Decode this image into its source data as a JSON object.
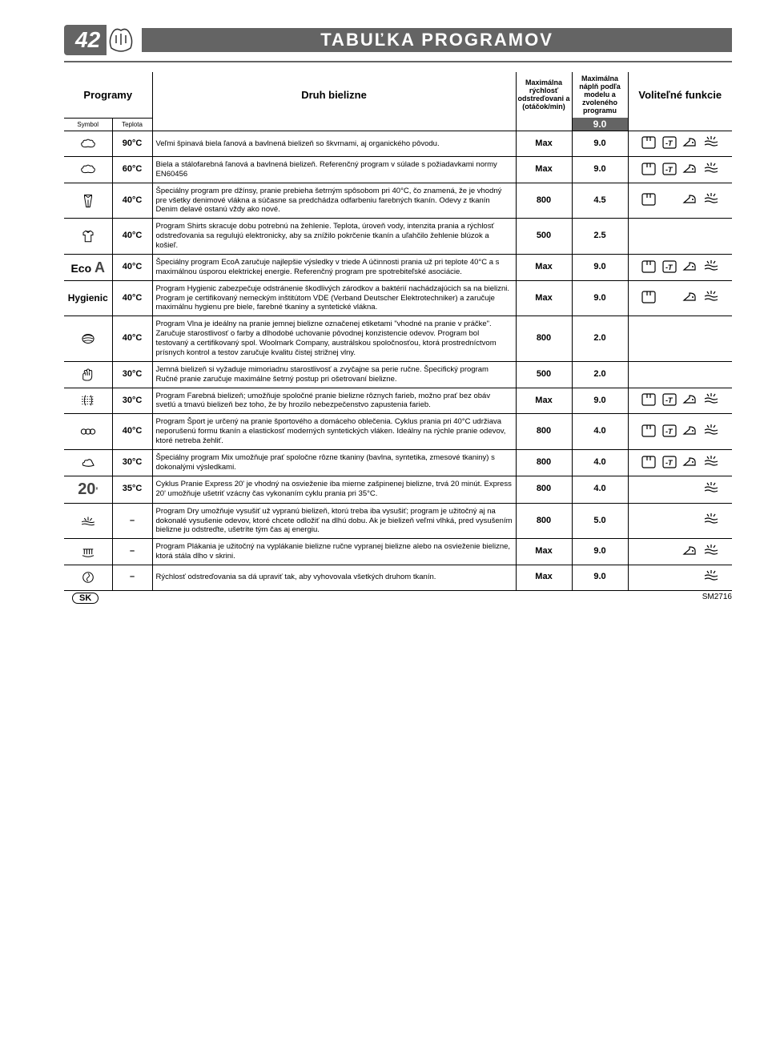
{
  "page_number": "42",
  "title": "TABUĽKA PROGRAMOV",
  "headers": {
    "programs": "Programy",
    "symbol": "Symbol",
    "temp": "Teplota",
    "fabric": "Druh bielizne",
    "spin": "Maximálna rýchlosť odstreďovani a (otáčok/min)",
    "capacity": "Maximálna náplň podľa modelu a zvoleného programu",
    "functions": "Voliteľné funkcie",
    "maxcap": "9.0"
  },
  "colors": {
    "header_bg": "#646464",
    "header_fg": "#ffffff",
    "line": "#000000",
    "text": "#000000"
  },
  "func_icons": {
    "prewash": "prewash",
    "stain": "stain",
    "easyiron": "easyiron",
    "dry": "dry"
  },
  "rows": [
    {
      "sym": "cotton",
      "temp": "90°C",
      "desc": "Veľmi špinavá biela ľanová a bavlnená bielizeň so škvrnami, aj organického pôvodu.",
      "spin": "Max",
      "cap": "9.0",
      "funcs": [
        "prewash",
        "stain",
        "easyiron",
        "dry"
      ]
    },
    {
      "sym": "cotton",
      "temp": "60°C",
      "desc": "Biela a stálofarebná ľanová a bavlnená bielizeň. Referenčný program v súlade s požiadavkami normy EN60456",
      "spin": "Max",
      "cap": "9.0",
      "funcs": [
        "prewash",
        "stain",
        "easyiron",
        "dry"
      ]
    },
    {
      "sym": "jeans",
      "temp": "40°C",
      "desc": "Špeciálny program pre džínsy, pranie prebieha šetrným spôsobom pri 40°C, čo znamená, že je vhodný pre všetky denimové vlákna a súčasne sa predchádza odfarbeniu farebných tkanín. Odevy z tkanín Denim delavé ostanú vždy ako nové.",
      "spin": "800",
      "cap": "4.5",
      "funcs": [
        "prewash",
        "",
        "easyiron",
        "dry"
      ]
    },
    {
      "sym": "shirts",
      "temp": "40°C",
      "desc": "Program Shirts skracuje dobu potrebnú na žehlenie. Teplota, úroveň vody, intenzita prania a rýchlosť odstreďovania sa regulujú elektronicky, aby sa znížilo pokrčenie tkanín a uľahčilo žehlenie blúzok a košieľ.",
      "spin": "500",
      "cap": "2.5",
      "funcs": []
    },
    {
      "sym": "eco",
      "temp": "40°C",
      "desc": "Špeciálny program EcoA zaručuje najlepšie výsledky v triede A účinnosti prania už pri teplote 40°C a s maximálnou úsporou elektrickej energie. Referenčný program pre spotrebiteľské asociácie.",
      "spin": "Max",
      "cap": "9.0",
      "funcs": [
        "prewash",
        "stain",
        "easyiron",
        "dry"
      ]
    },
    {
      "sym": "hygienic",
      "temp": "40°C",
      "desc": "Program Hygienic zabezpečuje odstránenie škodlivých zárodkov a baktérií nachádzajúcich sa na bielizni. Program je certifikovaný nemeckým inštitútom VDE (Verband Deutscher Elektrotechniker) a zaručuje maximálnu hygienu pre biele, farebné tkaniny a syntetické vlákna.",
      "spin": "Max",
      "cap": "9.0",
      "funcs": [
        "prewash",
        "",
        "easyiron",
        "dry"
      ]
    },
    {
      "sym": "wool",
      "temp": "40°C",
      "desc": "Program Vlna je ideálny na pranie jemnej bielizne označenej etiketami \"vhodné na pranie v práčke\". Zaručuje starostlivosť o farby a dlhodobé uchovanie pôvodnej konzistencie odevov. Program bol testovaný a certifikovaný spol. Woolmark Company, austrálskou spoločnosťou, ktorá prostredníctvom prísnych kontrol a testov zaručuje kvalitu čistej strižnej vlny.",
      "spin": "800",
      "cap": "2.0",
      "funcs": []
    },
    {
      "sym": "hand",
      "temp": "30°C",
      "desc": "Jemná bielizeň si vyžaduje mimoriadnu starostlivosť a zvyčajne sa perie ručne. Špecifický program Ručné pranie zaručuje maximálne šetrný postup pri ošetrovaní bielizne.",
      "spin": "500",
      "cap": "2.0",
      "funcs": []
    },
    {
      "sym": "delicate",
      "temp": "30°C",
      "desc": "Program Farebná bielizeň; umožňuje spoločné pranie bielizne rôznych farieb, možno prať bez obáv svetlú a tmavú bielizeň bez toho, že by hrozilo nebezpečenstvo zapustenia farieb.",
      "spin": "Max",
      "cap": "9.0",
      "funcs": [
        "prewash",
        "stain",
        "easyiron",
        "dry"
      ]
    },
    {
      "sym": "sport",
      "temp": "40°C",
      "desc": "Program Šport je určený na pranie športového a domáceho oblečenia. Cyklus prania pri 40°C udržiava neporušenú formu tkanín a elastickosť moderných syntetických vláken. Ideálny na rýchle pranie odevov, ktoré netreba žehliť.",
      "spin": "800",
      "cap": "4.0",
      "funcs": [
        "prewash",
        "stain",
        "easyiron",
        "dry"
      ]
    },
    {
      "sym": "mix",
      "temp": "30°C",
      "desc": "Špeciálny program Mix umožňuje prať spoločne rôzne tkaniny (bavlna, syntetika, zmesové tkaniny) s dokonalými výsledkami.",
      "spin": "800",
      "cap": "4.0",
      "funcs": [
        "prewash",
        "stain",
        "easyiron",
        "dry"
      ]
    },
    {
      "sym": "twenty",
      "temp": "35°C",
      "desc": "Cyklus Pranie Express 20' je vhodný na osvieženie iba mierne zašpinenej bielizne, trvá 20 minút. Express 20' umožňuje ušetriť vzácny čas vykonaním cyklu prania pri 35°C.",
      "spin": "800",
      "cap": "4.0",
      "funcs": [
        "",
        "",
        "",
        "dry"
      ]
    },
    {
      "sym": "dry",
      "temp": "–",
      "desc": "Program Dry umožňuje vysušiť už vypranú bielizeň, ktorú treba iba vysušiť; program je užitočný aj na dokonalé vysušenie odevov, ktoré chcete odložiť na dlhú dobu. Ak je bielizeň veľmi vlhká, pred vysušením bielizne ju odstreďte, ušetríte tým čas aj energiu.",
      "spin": "800",
      "cap": "5.0",
      "funcs": [
        "",
        "",
        "",
        "dry"
      ]
    },
    {
      "sym": "rinse",
      "temp": "–",
      "desc": "Program Plákania je užitočný na vyplákanie bielizne ručne vypranej bielizne alebo na osvieženie bielizne, ktorá stála dlho v skrini.",
      "spin": "Max",
      "cap": "9.0",
      "funcs": [
        "",
        "",
        "easyiron",
        "dry"
      ]
    },
    {
      "sym": "spin",
      "temp": "–",
      "desc": "Rýchlosť odstreďovania sa dá upraviť tak, aby vyhovovala všetkých druhom tkanín.",
      "spin": "Max",
      "cap": "9.0",
      "funcs": [
        "",
        "",
        "",
        "dry"
      ]
    }
  ],
  "footer": {
    "lang": "SK",
    "code": "SM2716"
  }
}
